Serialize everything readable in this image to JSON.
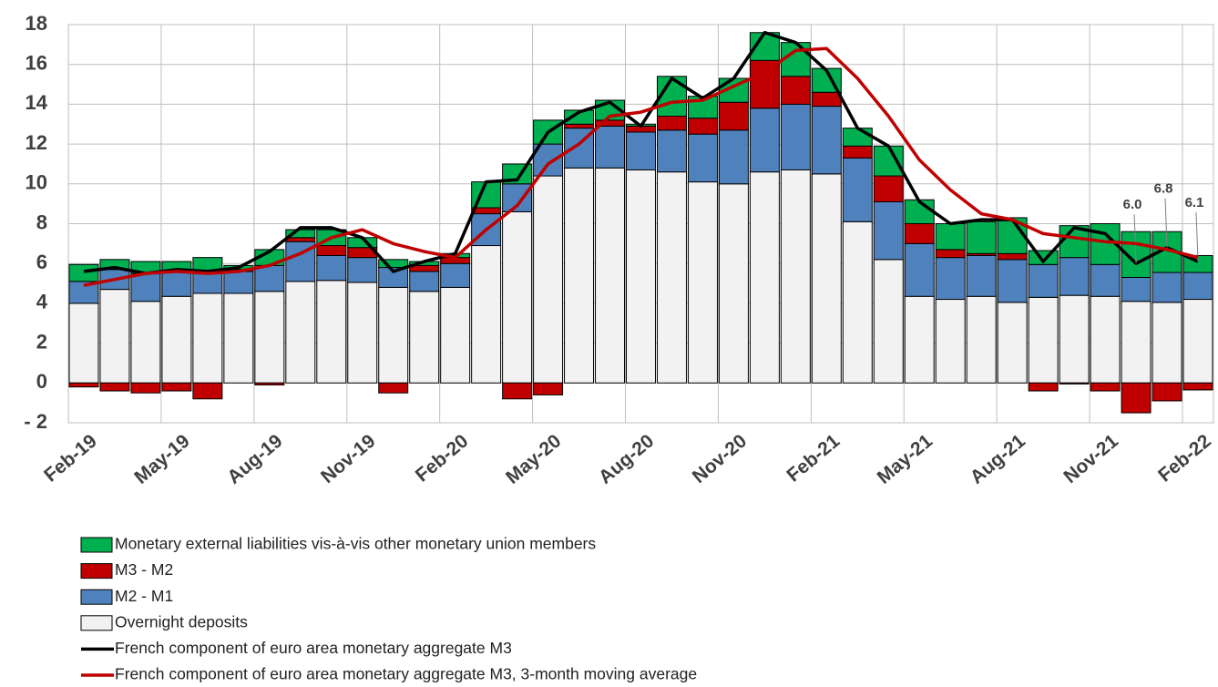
{
  "chart_data": {
    "type": "bar",
    "categories": [
      "Feb-19",
      null,
      null,
      "May-19",
      null,
      null,
      "Aug-19",
      null,
      null,
      "Nov-19",
      null,
      null,
      "Feb-20",
      null,
      null,
      "May-20",
      null,
      null,
      "Aug-20",
      null,
      null,
      "Nov-20",
      null,
      null,
      "Feb-21",
      null,
      null,
      "May-21",
      null,
      null,
      "Aug-21",
      null,
      null,
      "Nov-21",
      null,
      null,
      "Feb-22"
    ],
    "series": [
      {
        "name": "Overnight deposits",
        "type": "bar",
        "color": "#f2f2f2",
        "values": [
          4.0,
          4.7,
          4.1,
          4.35,
          4.5,
          4.5,
          4.6,
          5.1,
          5.15,
          5.05,
          4.8,
          4.6,
          4.8,
          6.9,
          8.6,
          10.4,
          10.8,
          10.8,
          10.7,
          10.6,
          10.1,
          10.0,
          10.6,
          10.7,
          10.5,
          8.1,
          6.2,
          4.35,
          4.2,
          4.35,
          4.05,
          4.3,
          4.4,
          4.35,
          4.1,
          4.05,
          4.2
        ]
      },
      {
        "name": "M2 - M1",
        "type": "bar",
        "color": "#4f81bd",
        "values": [
          1.1,
          1.0,
          1.4,
          1.3,
          1.1,
          1.1,
          1.3,
          2.0,
          1.25,
          1.25,
          1.0,
          1.0,
          1.2,
          1.6,
          1.4,
          1.6,
          2.0,
          2.1,
          1.9,
          2.1,
          2.4,
          2.7,
          3.2,
          3.3,
          3.4,
          3.2,
          2.9,
          2.65,
          2.1,
          2.05,
          2.15,
          1.65,
          1.9,
          1.6,
          1.2,
          1.5,
          1.35
        ]
      },
      {
        "name": "M3 - M2",
        "type": "bar",
        "color": "#c00000",
        "values": [
          -0.2,
          -0.4,
          -0.5,
          -0.4,
          -0.8,
          0.1,
          -0.1,
          0.2,
          0.5,
          0.5,
          -0.5,
          0.3,
          0.3,
          0.3,
          -0.8,
          -0.6,
          0.2,
          0.3,
          0.3,
          0.7,
          0.8,
          1.4,
          2.4,
          1.4,
          0.7,
          0.6,
          1.3,
          1.0,
          0.4,
          0.1,
          0.3,
          -0.4,
          -0.05,
          -0.4,
          -1.5,
          -0.9,
          -0.35
        ]
      },
      {
        "name": "Monetary external liabilities vis-à-vis other monetary union members",
        "type": "bar",
        "color": "#00b050",
        "values": [
          0.85,
          0.5,
          0.6,
          0.45,
          0.7,
          0.2,
          0.8,
          0.4,
          0.8,
          0.5,
          0.4,
          0.2,
          0.2,
          1.3,
          1.0,
          1.2,
          0.7,
          1.0,
          0.1,
          2.0,
          1.1,
          1.2,
          1.4,
          1.7,
          1.2,
          0.9,
          1.5,
          1.2,
          1.3,
          1.6,
          1.8,
          0.7,
          1.6,
          2.05,
          2.3,
          2.05,
          0.85
        ]
      },
      {
        "name": "French component of euro area monetary aggregate M3",
        "type": "line",
        "color": "#000000",
        "values": [
          5.6,
          5.8,
          5.5,
          5.7,
          5.6,
          5.8,
          6.6,
          7.8,
          7.8,
          7.3,
          5.6,
          6.1,
          6.5,
          10.1,
          10.2,
          12.6,
          13.6,
          14.1,
          12.9,
          15.3,
          14.3,
          15.3,
          17.6,
          17.1,
          15.7,
          12.8,
          11.9,
          9.1,
          8.0,
          8.2,
          8.2,
          6.1,
          7.8,
          7.5,
          6.0,
          6.8,
          6.1
        ],
        "value_labels": [
          null,
          null,
          null,
          null,
          null,
          null,
          null,
          null,
          null,
          null,
          null,
          null,
          null,
          null,
          null,
          null,
          null,
          null,
          null,
          null,
          null,
          null,
          null,
          null,
          null,
          null,
          null,
          null,
          null,
          null,
          null,
          null,
          null,
          null,
          "6.0",
          "6.8",
          "6.1"
        ]
      },
      {
        "name": "French component of euro area monetary aggregate M3, 3-month moving average",
        "type": "line",
        "color": "#c00000",
        "values": [
          4.9,
          5.2,
          5.5,
          5.6,
          5.5,
          5.6,
          5.9,
          6.5,
          7.3,
          7.7,
          7.0,
          6.6,
          6.3,
          7.7,
          8.9,
          11.0,
          12.0,
          13.4,
          13.6,
          14.1,
          14.2,
          14.9,
          15.6,
          16.7,
          16.8,
          15.3,
          13.4,
          11.2,
          9.7,
          8.5,
          8.2,
          7.5,
          7.3,
          7.1,
          7.0,
          6.7,
          6.3
        ]
      }
    ],
    "ylim": [
      -2,
      18
    ],
    "yticks": [
      {
        "value": -2,
        "label": "- 2"
      },
      0,
      2,
      4,
      6,
      8,
      10,
      12,
      14,
      16,
      18
    ],
    "grid": true
  }
}
